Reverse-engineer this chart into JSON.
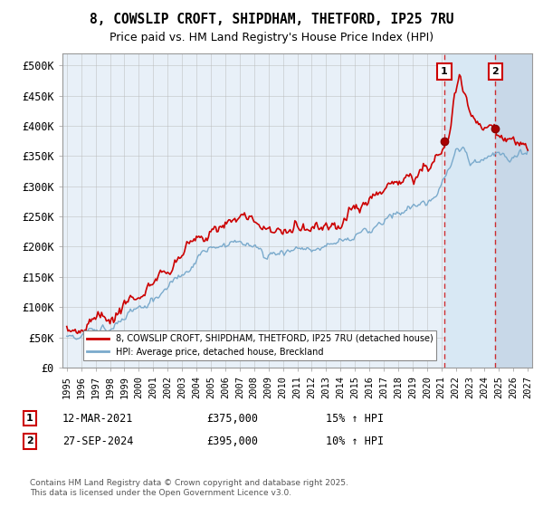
{
  "title1": "8, COWSLIP CROFT, SHIPDHAM, THETFORD, IP25 7RU",
  "title2": "Price paid vs. HM Land Registry's House Price Index (HPI)",
  "ylabel_ticks": [
    "£0",
    "£50K",
    "£100K",
    "£150K",
    "£200K",
    "£250K",
    "£300K",
    "£350K",
    "£400K",
    "£450K",
    "£500K"
  ],
  "ytick_values": [
    0,
    50000,
    100000,
    150000,
    200000,
    250000,
    300000,
    350000,
    400000,
    450000,
    500000
  ],
  "ylim": [
    0,
    520000
  ],
  "xlim_start": 1994.7,
  "xlim_end": 2027.3,
  "xticks": [
    1995,
    1996,
    1997,
    1998,
    1999,
    2000,
    2001,
    2002,
    2003,
    2004,
    2005,
    2006,
    2007,
    2008,
    2009,
    2010,
    2011,
    2012,
    2013,
    2014,
    2015,
    2016,
    2017,
    2018,
    2019,
    2020,
    2021,
    2022,
    2023,
    2024,
    2025,
    2026,
    2027
  ],
  "legend_line1": "8, COWSLIP CROFT, SHIPDHAM, THETFORD, IP25 7RU (detached house)",
  "legend_line2": "HPI: Average price, detached house, Breckland",
  "line1_color": "#cc0000",
  "line2_color": "#7aaacc",
  "purchase1_date": "12-MAR-2021",
  "purchase1_price": 375000,
  "purchase1_hpi": "15% ↑ HPI",
  "purchase1_year": 2021.2,
  "purchase2_date": "27-SEP-2024",
  "purchase2_price": 395000,
  "purchase2_hpi": "10% ↑ HPI",
  "purchase2_year": 2024.75,
  "footnote": "Contains HM Land Registry data © Crown copyright and database right 2025.\nThis data is licensed under the Open Government Licence v3.0.",
  "bg_color": "#e8f0f8",
  "shade_between_color": "#d8e8f4",
  "hatch_color": "#c8d8e8",
  "grid_color": "#bbbbbb"
}
